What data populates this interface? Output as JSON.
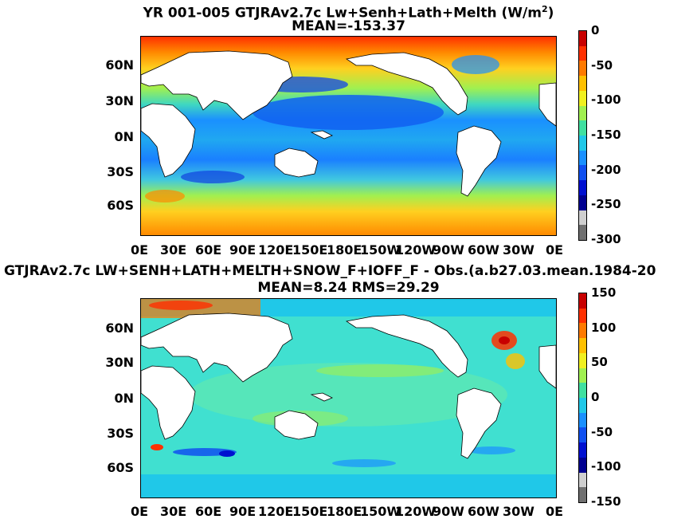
{
  "panel1": {
    "title_line1": "YR 001-005 GTJRAv2.7c Lw+Senh+Lath+Melth (W/m",
    "title_sup": "2",
    "title_close": ")",
    "title_line2": "MEAN=-153.37",
    "lat_labels": [
      "60N",
      "30N",
      "0N",
      "30S",
      "60S"
    ],
    "lon_labels": [
      "0E",
      "30E",
      "60E",
      "90E",
      "120E",
      "150E",
      "180E",
      "150W",
      "120W",
      "90W",
      "60W",
      "30W",
      "0E"
    ],
    "colorbar_ticks": [
      "0",
      "-50",
      "-100",
      "-150",
      "-200",
      "-250",
      "-300"
    ],
    "colorbar_colors": [
      "#c80000",
      "#ff3000",
      "#ff7a00",
      "#ffc000",
      "#f0f020",
      "#a0f050",
      "#40e0a0",
      "#20c8e8",
      "#1a90ff",
      "#1050f0",
      "#0010d0",
      "#000090",
      "#cfcfcf",
      "#707070"
    ]
  },
  "panel2": {
    "title_line1": "GTJRAv2.7c LW+SENH+LATH+MELTH+SNOW_F+IOFF_F - Obs.(a.b27.03.mean.1984-20",
    "title_line2": "MEAN=8.24 RMS=29.29",
    "lat_labels": [
      "60N",
      "30N",
      "0N",
      "30S",
      "60S"
    ],
    "lon_labels": [
      "0E",
      "30E",
      "60E",
      "90E",
      "120E",
      "150E",
      "180E",
      "150W",
      "120W",
      "90W",
      "60W",
      "30W",
      "0E"
    ],
    "colorbar_ticks": [
      "150",
      "100",
      "50",
      "0",
      "-50",
      "-100",
      "-150"
    ],
    "colorbar_colors": [
      "#c80000",
      "#ff3000",
      "#ff7a00",
      "#ffc000",
      "#f0f020",
      "#a0f050",
      "#40e0a0",
      "#20c8e8",
      "#1a90ff",
      "#1050f0",
      "#0010d0",
      "#000090",
      "#cfcfcf",
      "#707070"
    ]
  },
  "chart_data": [
    {
      "type": "heatmap",
      "title": "YR 001-005 GTJRAv2.7c Lw+Senh+Lath+Melth (W/m2)",
      "subtitle": "MEAN=-153.37",
      "xticks": [
        "0E",
        "30E",
        "60E",
        "90E",
        "120E",
        "150E",
        "180E",
        "150W",
        "120W",
        "90W",
        "60W",
        "30W",
        "0E"
      ],
      "yticks": [
        "60N",
        "30N",
        "0N",
        "30S",
        "60S"
      ],
      "colorbar_range": [
        -300,
        0
      ],
      "colorbar_ticks": [
        0,
        -50,
        -100,
        -150,
        -200,
        -250,
        -300
      ],
      "mean": -153.37
    },
    {
      "type": "heatmap",
      "title": "GTJRAv2.7c LW+SENH+LATH+MELTH+SNOW_F+IOFF_F - Obs.(a.b27.03.mean.1984-20",
      "subtitle": "MEAN=8.24 RMS=29.29",
      "xticks": [
        "0E",
        "30E",
        "60E",
        "90E",
        "120E",
        "150E",
        "180E",
        "150W",
        "120W",
        "90W",
        "60W",
        "30W",
        "0E"
      ],
      "yticks": [
        "60N",
        "30N",
        "0N",
        "30S",
        "60S"
      ],
      "colorbar_range": [
        -150,
        150
      ],
      "colorbar_ticks": [
        150,
        100,
        50,
        0,
        -50,
        -100,
        -150
      ],
      "mean": 8.24,
      "rms": 29.29
    }
  ]
}
